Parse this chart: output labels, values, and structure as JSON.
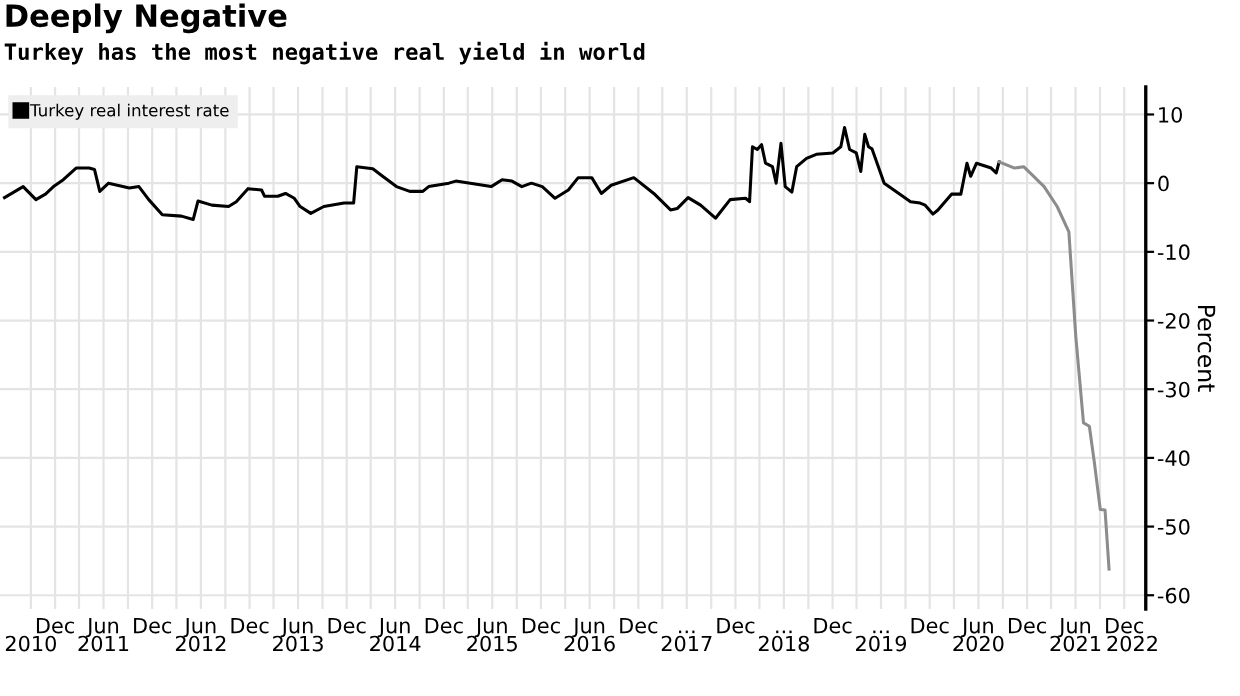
{
  "chart_data": {
    "type": "line",
    "title": "Deeply Negative",
    "subtitle": "Turkey has the most negative real yield in world",
    "ylabel": "Percent",
    "series": [
      {
        "name": "Turkey real interest rate",
        "color": "#000000",
        "x": [
          "2010-05-25",
          "2010-08-03",
          "2010-09-20",
          "2010-10-26",
          "2010-11-25",
          "2011-01-01",
          "2011-02-18",
          "2011-04-08",
          "2011-04-28",
          "2011-05-18",
          "2011-06-20",
          "2011-09-06",
          "2011-10-12",
          "2011-11-18",
          "2012-01-08",
          "2012-03-20",
          "2012-05-03",
          "2012-05-21",
          "2012-07-12",
          "2012-09-13",
          "2012-10-12",
          "2012-11-25",
          "2013-01-15",
          "2013-01-26",
          "2013-03-17",
          "2013-04-15",
          "2013-05-18",
          "2013-06-09",
          "2013-07-19",
          "2013-09-06",
          "2013-11-21",
          "2013-12-27",
          "2014-01-08",
          "2014-03-09",
          "2014-04-15",
          "2014-06-06",
          "2014-07-26",
          "2014-09-13",
          "2014-10-05",
          "2014-12-20",
          "2015-01-15",
          "2015-05-28",
          "2015-07-08",
          "2015-08-14",
          "2015-09-20",
          "2015-10-26",
          "2015-12-06",
          "2016-01-23",
          "2016-03-13",
          "2016-04-19",
          "2016-06-09",
          "2016-07-15",
          "2016-08-21",
          "2016-11-14",
          "2017-01-28",
          "2017-04-01",
          "2017-04-26",
          "2017-06-06",
          "2017-07-23",
          "2017-09-17",
          "2017-11-11",
          "2018-01-08",
          "2018-01-23",
          "2018-02-03",
          "2018-02-21",
          "2018-03-09",
          "2018-03-24",
          "2018-04-19",
          "2018-05-03",
          "2018-05-21",
          "2018-06-06",
          "2018-07-01",
          "2018-07-19",
          "2018-08-25",
          "2018-10-01",
          "2018-12-02",
          "2019-01-01",
          "2019-01-15",
          "2019-02-03",
          "2019-02-28",
          "2019-03-17",
          "2019-04-01",
          "2019-04-15",
          "2019-04-28",
          "2019-06-13",
          "2019-08-07",
          "2019-09-20",
          "2019-10-26",
          "2019-11-14",
          "2019-12-13",
          "2020-01-01",
          "2020-02-21",
          "2020-03-27",
          "2020-04-19",
          "2020-05-03",
          "2020-05-25",
          "2020-07-19",
          "2020-08-07",
          "2020-08-18"
        ],
        "values": [
          -2.1,
          -0.5,
          -2.4,
          -1.6,
          -0.5,
          0.5,
          2.2,
          2.2,
          2.0,
          -1.2,
          0,
          -0.7,
          -0.5,
          -2.4,
          -4.6,
          -4.8,
          -5.3,
          -2.6,
          -3.2,
          -3.4,
          -2.7,
          -0.8,
          -1.0,
          -1.9,
          -1.9,
          -1.5,
          -2.2,
          -3.4,
          -4.4,
          -3.4,
          -2.9,
          -2.9,
          2.4,
          2.1,
          1.0,
          -0.5,
          -1.2,
          -1.2,
          -0.5,
          0,
          0.3,
          -0.5,
          0.5,
          0.3,
          -0.5,
          0,
          -0.5,
          -2.2,
          -1.0,
          0.8,
          0.8,
          -1.5,
          -0.3,
          0.8,
          -1.5,
          -3.9,
          -3.7,
          -2.1,
          -3.2,
          -5.1,
          -2.4,
          -2.2,
          -2.7,
          5.3,
          4.9,
          5.6,
          2.9,
          2.4,
          0,
          5.8,
          -0.5,
          -1.3,
          2.4,
          3.6,
          4.2,
          4.4,
          5.3,
          8.1,
          4.9,
          4.4,
          1.7,
          7.1,
          5.3,
          5.0,
          0,
          -1.5,
          -2.7,
          -2.9,
          -3.2,
          -4.5,
          -3.9,
          -1.6,
          -1.6,
          2.9,
          1.0,
          2.9,
          2.2,
          1.5,
          3.1
        ]
      },
      {
        "color": "#8c8c8c",
        "x": [
          "2020-08-18",
          "2020-10-15",
          "2020-11-18",
          "2020-12-20",
          "2021-02-03",
          "2021-03-24",
          "2021-05-07",
          "2021-06-02",
          "2021-07-01",
          "2021-07-23",
          "2021-08-11",
          "2021-09-02",
          "2021-09-20",
          "2021-10-05"
        ],
        "values": [
          3.1,
          2.2,
          2.4,
          1.2,
          -0.5,
          -3.4,
          -7.1,
          -22.3,
          -34.9,
          -35.4,
          -40.7,
          -47.5,
          -47.6,
          -56.2
        ]
      }
    ],
    "xlim": [
      "2010-05-08",
      "2022-02-20"
    ],
    "xticks": [
      {
        "value": "2010-09-01",
        "label": null
      },
      {
        "value": "2010-12-01",
        "label": "Dec"
      },
      {
        "value": "2011-03-01",
        "label": null
      },
      {
        "value": "2011-06-01",
        "label": "Jun"
      },
      {
        "value": "2011-09-01",
        "label": null
      },
      {
        "value": "2011-12-01",
        "label": "Dec"
      },
      {
        "value": "2012-03-01",
        "label": null
      },
      {
        "value": "2012-06-01",
        "label": "Jun"
      },
      {
        "value": "2012-09-01",
        "label": null
      },
      {
        "value": "2012-12-01",
        "label": "Dec"
      },
      {
        "value": "2013-03-01",
        "label": null
      },
      {
        "value": "2013-06-01",
        "label": "Jun"
      },
      {
        "value": "2013-09-01",
        "label": null
      },
      {
        "value": "2013-12-01",
        "label": "Dec"
      },
      {
        "value": "2014-03-01",
        "label": null
      },
      {
        "value": "2014-06-01",
        "label": "Jun"
      },
      {
        "value": "2014-09-01",
        "label": null
      },
      {
        "value": "2014-12-01",
        "label": "Dec"
      },
      {
        "value": "2015-03-01",
        "label": null
      },
      {
        "value": "2015-06-01",
        "label": "Jun"
      },
      {
        "value": "2015-09-01",
        "label": null
      },
      {
        "value": "2015-12-01",
        "label": "Dec"
      },
      {
        "value": "2016-03-01",
        "label": null
      },
      {
        "value": "2016-06-01",
        "label": "Jun"
      },
      {
        "value": "2016-09-01",
        "label": null
      },
      {
        "value": "2016-12-01",
        "label": "Dec"
      },
      {
        "value": "2017-03-01",
        "label": null
      },
      {
        "value": "2017-06-01",
        "label": "..."
      },
      {
        "value": "2017-09-01",
        "label": null
      },
      {
        "value": "2017-12-01",
        "label": "Dec"
      },
      {
        "value": "2018-03-01",
        "label": null
      },
      {
        "value": "2018-06-01",
        "label": "..."
      },
      {
        "value": "2018-09-01",
        "label": null
      },
      {
        "value": "2018-12-01",
        "label": "Dec"
      },
      {
        "value": "2019-03-01",
        "label": null
      },
      {
        "value": "2019-06-01",
        "label": "..."
      },
      {
        "value": "2019-09-01",
        "label": null
      },
      {
        "value": "2019-12-01",
        "label": "Dec"
      },
      {
        "value": "2020-03-01",
        "label": null
      },
      {
        "value": "2020-06-01",
        "label": "Jun"
      },
      {
        "value": "2020-09-01",
        "label": null
      },
      {
        "value": "2020-12-01",
        "label": "Dec"
      },
      {
        "value": "2021-03-01",
        "label": null
      },
      {
        "value": "2021-06-01",
        "label": "Jun"
      },
      {
        "value": "2021-09-01",
        "label": null
      },
      {
        "value": "2021-12-01",
        "label": "Dec"
      }
    ],
    "x2lim": [
      "2010-05-08",
      "2022-02-20"
    ],
    "x2ticks": [
      {
        "value": "2010-09-01",
        "label": "2010"
      },
      {
        "value": "2011-06-01",
        "label": "2011"
      },
      {
        "value": "2012-06-01",
        "label": "2012"
      },
      {
        "value": "2013-06-01",
        "label": "2013"
      },
      {
        "value": "2014-06-01",
        "label": "2014"
      },
      {
        "value": "2015-06-01",
        "label": "2015"
      },
      {
        "value": "2016-06-01",
        "label": "2016"
      },
      {
        "value": "2017-06-01",
        "label": "2017"
      },
      {
        "value": "2018-06-01",
        "label": "2018"
      },
      {
        "value": "2019-06-01",
        "label": "2019"
      },
      {
        "value": "2020-06-01",
        "label": "2020"
      },
      {
        "value": "2021-06-01",
        "label": "2021"
      },
      {
        "value": "2022-01-01",
        "label": "2022"
      }
    ],
    "ylim": [
      -62,
      14
    ],
    "yticks": [
      10,
      0,
      -10,
      -20,
      -30,
      -40,
      -50,
      -60
    ],
    "grid": true,
    "legend": "top left",
    "marker": "none",
    "line_style": "solid"
  }
}
